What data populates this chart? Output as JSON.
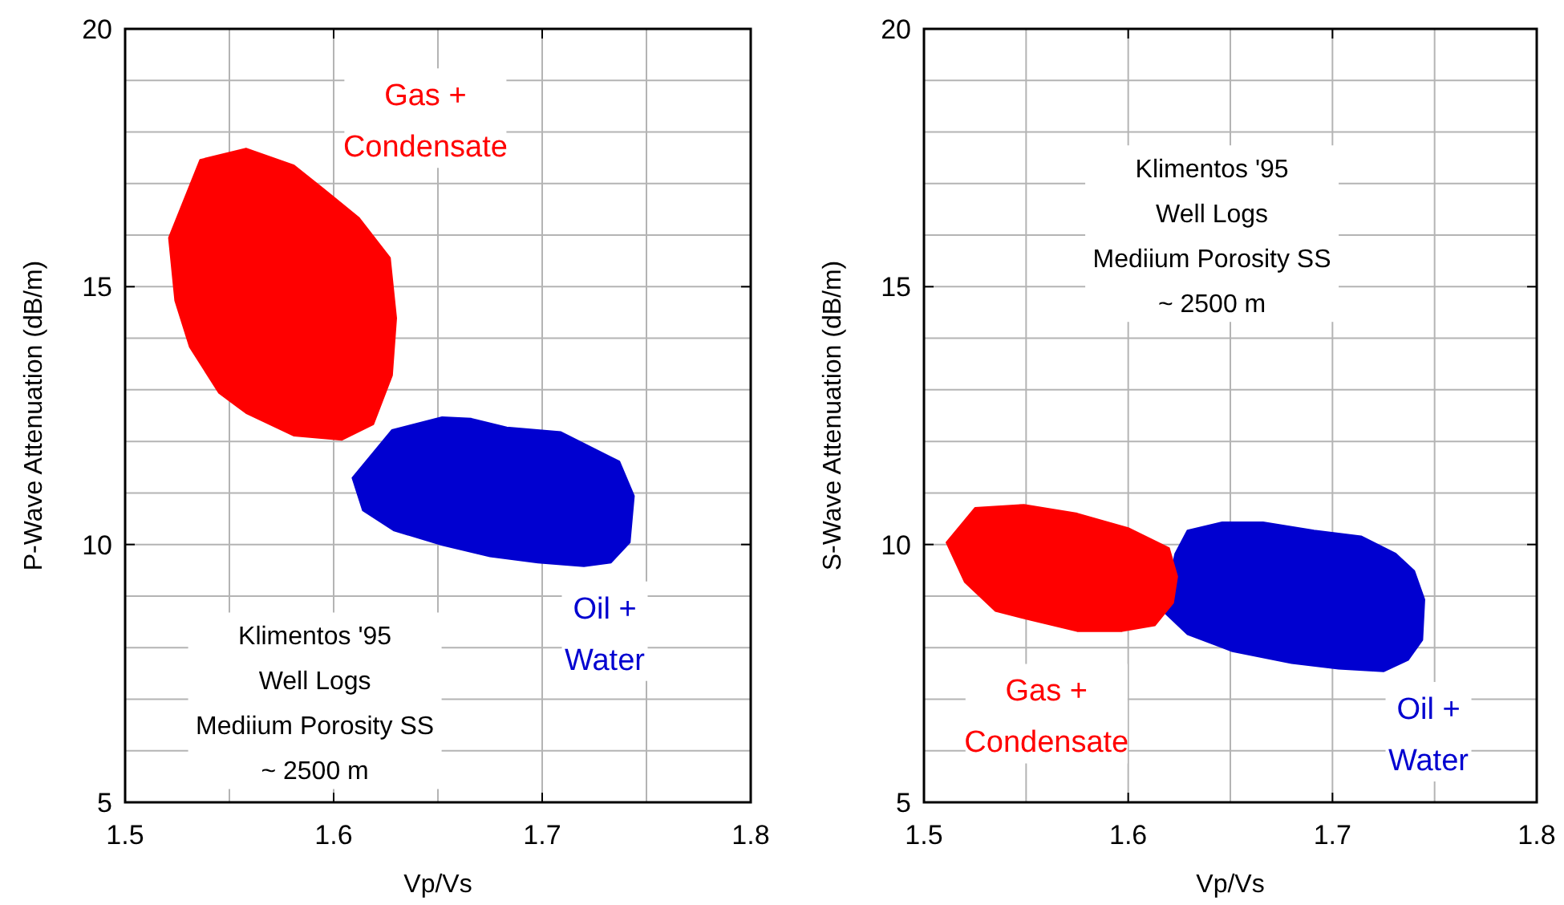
{
  "chart_data": [
    {
      "type": "area",
      "xlabel": "Vp/Vs",
      "ylabel": "P-Wave Attenuation (dB/m)",
      "xlim": [
        1.5,
        1.8
      ],
      "ylim": [
        5,
        20
      ],
      "xticks": [
        1.5,
        {
          "value": 1.55,
          "label": null
        },
        1.6,
        {
          "value": 1.65,
          "label": null
        },
        1.7,
        {
          "value": 1.75,
          "label": null
        },
        1.8
      ],
      "yticks": [
        5,
        {
          "value": 6,
          "label": null
        },
        {
          "value": 7,
          "label": null
        },
        {
          "value": 8,
          "label": null
        },
        {
          "value": 9,
          "label": null
        },
        10,
        {
          "value": 11,
          "label": null
        },
        {
          "value": 12,
          "label": null
        },
        {
          "value": 13,
          "label": null
        },
        {
          "value": 14,
          "label": null
        },
        15,
        {
          "value": 16,
          "label": null
        },
        {
          "value": 17,
          "label": null
        },
        {
          "value": 18,
          "label": null
        },
        {
          "value": 19,
          "label": null
        },
        20
      ],
      "grid": true,
      "annotations": [
        "Klimentos '95\nWell Logs\nMediium Porosity SS\n~ 2500 m"
      ],
      "series": [
        {
          "name": "Oil +\nWater",
          "color": "#0000d0",
          "x": [
            1.609,
            1.628,
            1.652,
            1.666,
            1.683,
            1.709,
            1.737,
            1.744,
            1.742,
            1.733,
            1.72,
            1.698,
            1.675,
            1.652,
            1.629,
            1.614
          ],
          "values": [
            11.29,
            12.22,
            12.47,
            12.44,
            12.27,
            12.18,
            11.61,
            10.94,
            10.04,
            9.65,
            9.58,
            9.65,
            9.77,
            9.99,
            10.27,
            10.66
          ]
        },
        {
          "name": "Gas +\nCondensate",
          "color": "#ff0000",
          "x": [
            1.521,
            1.536,
            1.558,
            1.581,
            1.595,
            1.612,
            1.627,
            1.63,
            1.628,
            1.619,
            1.604,
            1.581,
            1.558,
            1.545,
            1.531,
            1.524
          ],
          "values": [
            15.95,
            17.46,
            17.68,
            17.35,
            16.9,
            16.34,
            15.56,
            14.39,
            13.28,
            12.33,
            12.03,
            12.11,
            12.55,
            12.94,
            13.83,
            14.73
          ]
        }
      ]
    },
    {
      "type": "area",
      "xlabel": "Vp/Vs",
      "ylabel": "S-Wave Attenuation (dB/m)",
      "xlim": [
        1.5,
        1.8
      ],
      "ylim": [
        5,
        20
      ],
      "xticks": [
        1.5,
        {
          "value": 1.55,
          "label": null
        },
        1.6,
        {
          "value": 1.65,
          "label": null
        },
        1.7,
        {
          "value": 1.75,
          "label": null
        },
        1.8
      ],
      "yticks": [
        5,
        {
          "value": 6,
          "label": null
        },
        {
          "value": 7,
          "label": null
        },
        {
          "value": 8,
          "label": null
        },
        {
          "value": 9,
          "label": null
        },
        10,
        {
          "value": 11,
          "label": null
        },
        {
          "value": 12,
          "label": null
        },
        {
          "value": 13,
          "label": null
        },
        {
          "value": 14,
          "label": null
        },
        15,
        {
          "value": 16,
          "label": null
        },
        {
          "value": 17,
          "label": null
        },
        {
          "value": 18,
          "label": null
        },
        {
          "value": 19,
          "label": null
        },
        20
      ],
      "grid": true,
      "annotations": [
        "Klimentos '95\nWell Logs\nMediium Porosity SS\n~ 2500 m"
      ],
      "series": [
        {
          "name": "Oil +\nWater",
          "color": "#0000d0",
          "x": [
            1.617,
            1.623,
            1.629,
            1.646,
            1.666,
            1.691,
            1.714,
            1.731,
            1.74,
            1.745,
            1.744,
            1.737,
            1.725,
            1.703,
            1.68,
            1.651,
            1.629
          ],
          "values": [
            8.71,
            9.82,
            10.27,
            10.43,
            10.43,
            10.27,
            10.16,
            9.82,
            9.49,
            8.93,
            8.15,
            7.76,
            7.54,
            7.59,
            7.7,
            7.93,
            8.26
          ]
        },
        {
          "name": "Gas +\nCondensate",
          "color": "#ff0000",
          "x": [
            1.511,
            1.525,
            1.549,
            1.575,
            1.6,
            1.62,
            1.624,
            1.622,
            1.613,
            1.597,
            1.575,
            1.552,
            1.535,
            1.52
          ],
          "values": [
            10.04,
            10.71,
            10.77,
            10.6,
            10.32,
            9.93,
            9.38,
            8.87,
            8.43,
            8.32,
            8.32,
            8.54,
            8.71,
            9.27
          ]
        }
      ]
    }
  ]
}
